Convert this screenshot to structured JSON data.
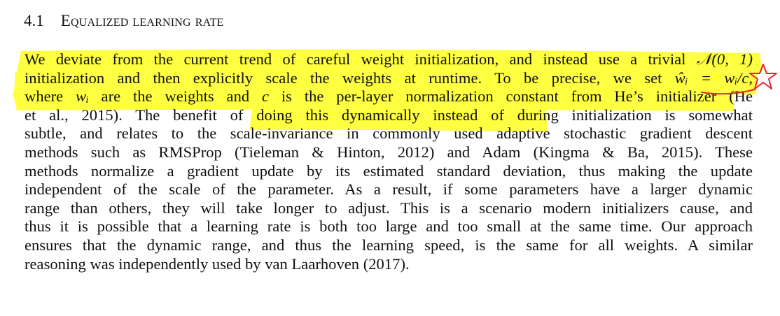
{
  "section": {
    "number": "4.1",
    "title": "Equalized learning rate"
  },
  "paragraph": {
    "lines": [
      [
        "We deviate from the current trend of careful weight initialization, and instead use a trivial ",
        "𝒩(0, 1)",
        ""
      ],
      [
        "initialization and then explicitly scale the weights at runtime.  To be precise, we set ",
        "ŵᵢ = wᵢ/c",
        ","
      ],
      [
        "where ",
        "wᵢ",
        " are the weights and ",
        "c",
        " is the per-layer normalization constant from He’s initializer (He"
      ],
      [
        "et al., 2015).  The benefit of doing this dynamically instead of during initialization is somewhat"
      ],
      [
        "subtle, and relates to the scale-invariance in commonly used adaptive stochastic gradient descent"
      ],
      [
        "methods such as RMSProp (Tieleman & Hinton, 2012) and Adam (Kingma & Ba, 2015).  These"
      ],
      [
        "methods normalize a gradient update by its estimated standard deviation, thus making the update"
      ],
      [
        "independent of the scale of the parameter.  As a result, if some parameters have a larger dynamic"
      ],
      [
        "range than others, they will take longer to adjust.  This is a scenario modern initializers cause, and"
      ],
      [
        "thus it is possible that a learning rate is both too large and too small at the same time.  Our approach"
      ],
      [
        "ensures that the dynamic range, and thus the learning speed, is the same for all weights.  A similar"
      ],
      [
        "reasoning was independently used by van Laarhoven (2017)."
      ]
    ]
  },
  "annotations": {
    "highlight_color": "#ffff33",
    "pen_color": "#e8232a",
    "marks": [
      "star-icon",
      "red-underline"
    ]
  }
}
